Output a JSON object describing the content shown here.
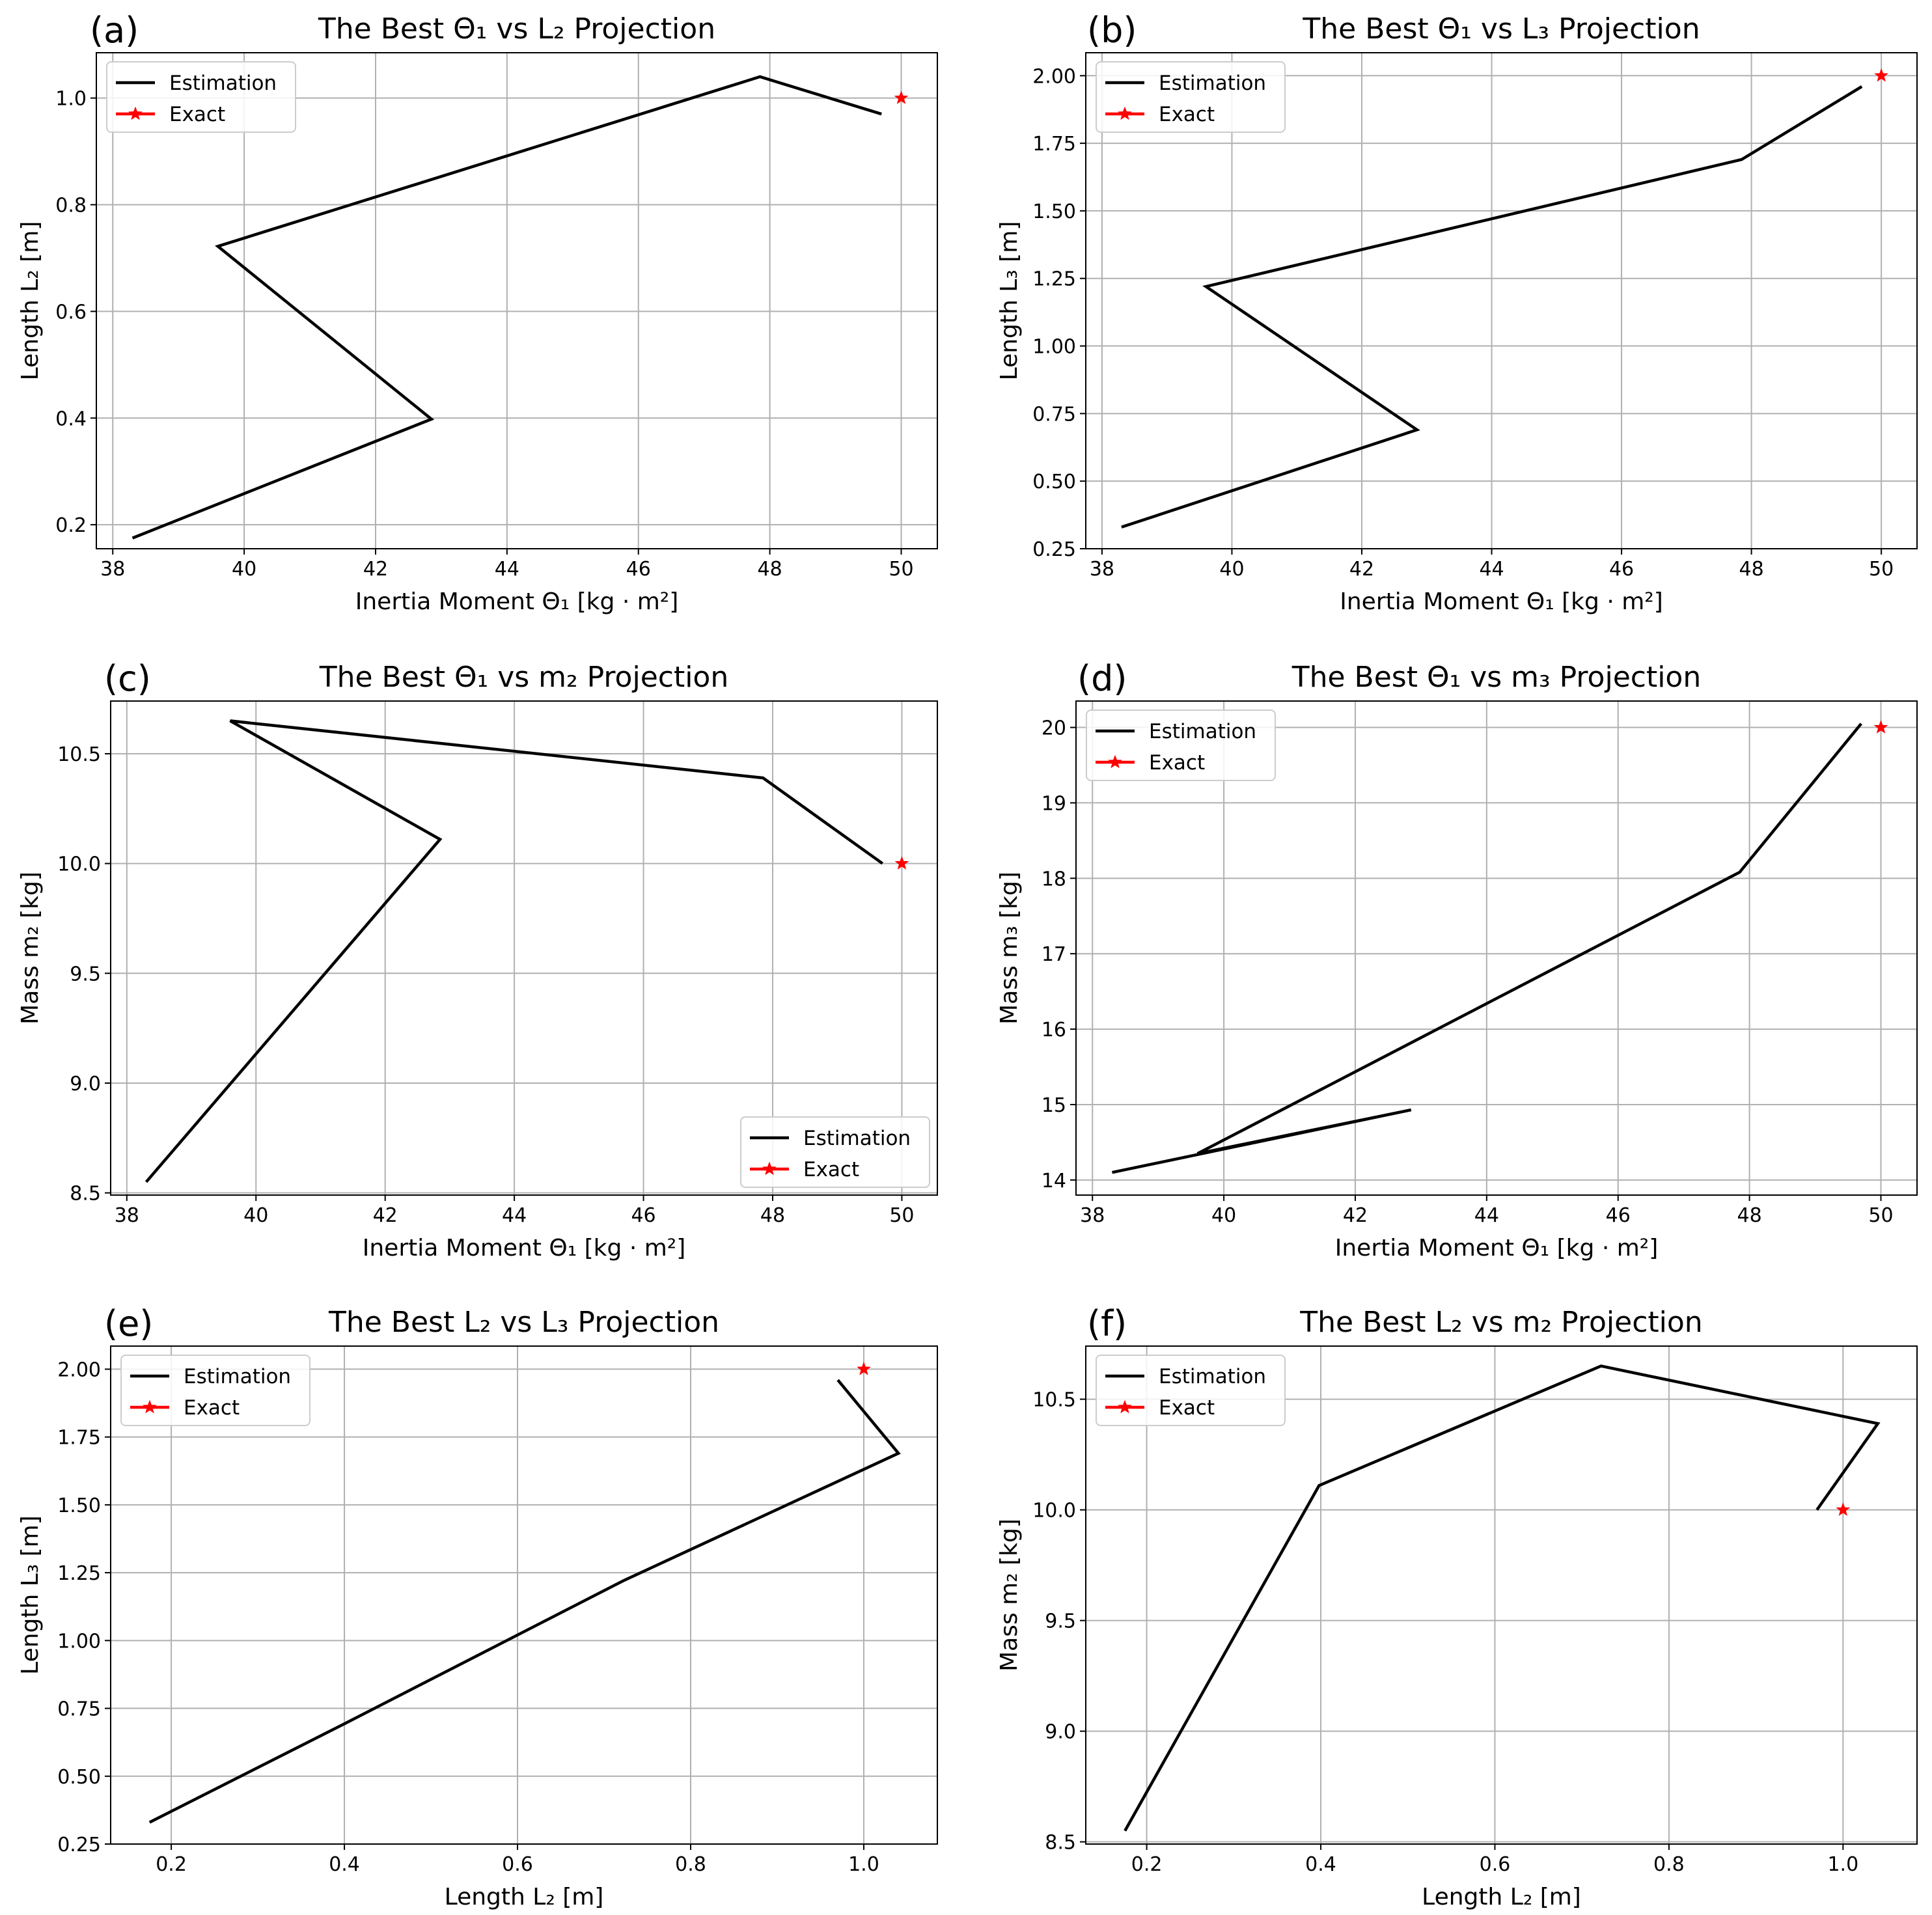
{
  "chart_data": [
    {
      "panel": "(a)",
      "type": "line",
      "title": "The Best Θ₁ vs L₂ Projection",
      "xlabel": "Inertia Moment Θ₁ [kg · m²]",
      "ylabel": "Length L₂ [m]",
      "xlim": [
        37.75,
        50.55
      ],
      "ylim": [
        0.155,
        1.085
      ],
      "xticks": [
        38,
        40,
        42,
        44,
        46,
        48,
        50
      ],
      "xtick_labels": [
        "38",
        "40",
        "42",
        "44",
        "46",
        "48",
        "50"
      ],
      "yticks": [
        0.2,
        0.4,
        0.6,
        0.8,
        1.0
      ],
      "ytick_labels": [
        "0.2",
        "0.4",
        "0.6",
        "0.8",
        "1.0"
      ],
      "grid": true,
      "legend_position": "upper-left",
      "series": [
        {
          "name": "Estimation",
          "style": "line",
          "color": "#000000",
          "x": [
            38.3,
            42.85,
            39.6,
            47.85,
            49.7
          ],
          "y": [
            0.175,
            0.398,
            0.722,
            1.04,
            0.97
          ]
        },
        {
          "name": "Exact",
          "style": "star",
          "color": "#ff0000",
          "x": [
            50.0
          ],
          "y": [
            1.0
          ]
        }
      ]
    },
    {
      "panel": "(b)",
      "type": "line",
      "title": "The Best Θ₁ vs L₃ Projection",
      "xlabel": "Inertia Moment Θ₁ [kg · m²]",
      "ylabel": "Length L₃ [m]",
      "xlim": [
        37.75,
        50.55
      ],
      "ylim": [
        0.25,
        2.085
      ],
      "xticks": [
        38,
        40,
        42,
        44,
        46,
        48,
        50
      ],
      "xtick_labels": [
        "38",
        "40",
        "42",
        "44",
        "46",
        "48",
        "50"
      ],
      "yticks": [
        0.25,
        0.5,
        0.75,
        1.0,
        1.25,
        1.5,
        1.75,
        2.0
      ],
      "ytick_labels": [
        "0.25",
        "0.50",
        "0.75",
        "1.00",
        "1.25",
        "1.50",
        "1.75",
        "2.00"
      ],
      "grid": true,
      "legend_position": "upper-left",
      "series": [
        {
          "name": "Estimation",
          "style": "line",
          "color": "#000000",
          "x": [
            38.3,
            42.85,
            39.6,
            47.85,
            49.7
          ],
          "y": [
            0.33,
            0.69,
            1.22,
            1.69,
            1.96
          ]
        },
        {
          "name": "Exact",
          "style": "star",
          "color": "#ff0000",
          "x": [
            50.0
          ],
          "y": [
            2.0
          ]
        }
      ]
    },
    {
      "panel": "(c)",
      "type": "line",
      "title": "The Best Θ₁ vs m₂ Projection",
      "xlabel": "Inertia Moment Θ₁ [kg · m²]",
      "ylabel": "Mass m₂ [kg]",
      "xlim": [
        37.75,
        50.55
      ],
      "ylim": [
        8.49,
        10.74
      ],
      "xticks": [
        38,
        40,
        42,
        44,
        46,
        48,
        50
      ],
      "xtick_labels": [
        "38",
        "40",
        "42",
        "44",
        "46",
        "48",
        "50"
      ],
      "yticks": [
        8.5,
        9.0,
        9.5,
        10.0,
        10.5
      ],
      "ytick_labels": [
        "8.5",
        "9.0",
        "9.5",
        "10.0",
        "10.5"
      ],
      "grid": true,
      "legend_position": "lower-right",
      "series": [
        {
          "name": "Estimation",
          "style": "line",
          "color": "#000000",
          "x": [
            38.3,
            42.85,
            39.6,
            47.85,
            49.7
          ],
          "y": [
            8.55,
            10.11,
            10.65,
            10.39,
            10.0
          ]
        },
        {
          "name": "Exact",
          "style": "star",
          "color": "#ff0000",
          "x": [
            50.0
          ],
          "y": [
            10.0
          ]
        }
      ]
    },
    {
      "panel": "(d)",
      "type": "line",
      "title": "The Best Θ₁ vs m₃ Projection",
      "xlabel": "Inertia Moment Θ₁ [kg · m²]",
      "ylabel": "Mass m₃ [kg]",
      "xlim": [
        37.75,
        50.55
      ],
      "ylim": [
        13.8,
        20.35
      ],
      "xticks": [
        38,
        40,
        42,
        44,
        46,
        48,
        50
      ],
      "xtick_labels": [
        "38",
        "40",
        "42",
        "44",
        "46",
        "48",
        "50"
      ],
      "yticks": [
        14,
        15,
        16,
        17,
        18,
        19,
        20
      ],
      "ytick_labels": [
        "14",
        "15",
        "16",
        "17",
        "18",
        "19",
        "20"
      ],
      "grid": true,
      "legend_position": "upper-left",
      "series": [
        {
          "name": "Estimation",
          "style": "line",
          "color": "#000000",
          "x": [
            38.3,
            42.85,
            39.6,
            47.85,
            49.7
          ],
          "y": [
            14.1,
            14.93,
            14.35,
            18.08,
            20.05
          ]
        },
        {
          "name": "Exact",
          "style": "star",
          "color": "#ff0000",
          "x": [
            50.0
          ],
          "y": [
            20.0
          ]
        }
      ]
    },
    {
      "panel": "(e)",
      "type": "line",
      "title": "The Best L₂ vs L₃ Projection",
      "xlabel": "Length L₂ [m]",
      "ylabel": "Length L₃ [m]",
      "xlim": [
        0.13,
        1.085
      ],
      "ylim": [
        0.25,
        2.085
      ],
      "xticks": [
        0.2,
        0.4,
        0.6,
        0.8,
        1.0
      ],
      "xtick_labels": [
        "0.2",
        "0.4",
        "0.6",
        "0.8",
        "1.0"
      ],
      "yticks": [
        0.25,
        0.5,
        0.75,
        1.0,
        1.25,
        1.5,
        1.75,
        2.0
      ],
      "ytick_labels": [
        "0.25",
        "0.50",
        "0.75",
        "1.00",
        "1.25",
        "1.50",
        "1.75",
        "2.00"
      ],
      "grid": true,
      "legend_position": "upper-left",
      "series": [
        {
          "name": "Estimation",
          "style": "line",
          "color": "#000000",
          "x": [
            0.175,
            0.398,
            0.722,
            1.04,
            0.97
          ],
          "y": [
            0.33,
            0.69,
            1.22,
            1.69,
            1.96
          ]
        },
        {
          "name": "Exact",
          "style": "star",
          "color": "#ff0000",
          "x": [
            1.0
          ],
          "y": [
            2.0
          ]
        }
      ]
    },
    {
      "panel": "(f)",
      "type": "line",
      "title": "The Best L₂ vs m₂ Projection",
      "xlabel": "Length L₂ [m]",
      "ylabel": "Mass m₂ [kg]",
      "xlim": [
        0.13,
        1.085
      ],
      "ylim": [
        8.49,
        10.74
      ],
      "xticks": [
        0.2,
        0.4,
        0.6,
        0.8,
        1.0
      ],
      "xtick_labels": [
        "0.2",
        "0.4",
        "0.6",
        "0.8",
        "1.0"
      ],
      "yticks": [
        8.5,
        9.0,
        9.5,
        10.0,
        10.5
      ],
      "ytick_labels": [
        "8.5",
        "9.0",
        "9.5",
        "10.0",
        "10.5"
      ],
      "grid": true,
      "legend_position": "upper-left",
      "series": [
        {
          "name": "Estimation",
          "style": "line",
          "color": "#000000",
          "x": [
            0.175,
            0.398,
            0.722,
            1.04,
            0.97
          ],
          "y": [
            8.55,
            10.11,
            10.65,
            10.39,
            10.0
          ]
        },
        {
          "name": "Exact",
          "style": "star",
          "color": "#ff0000",
          "x": [
            1.0
          ],
          "y": [
            10.0
          ]
        }
      ]
    }
  ]
}
